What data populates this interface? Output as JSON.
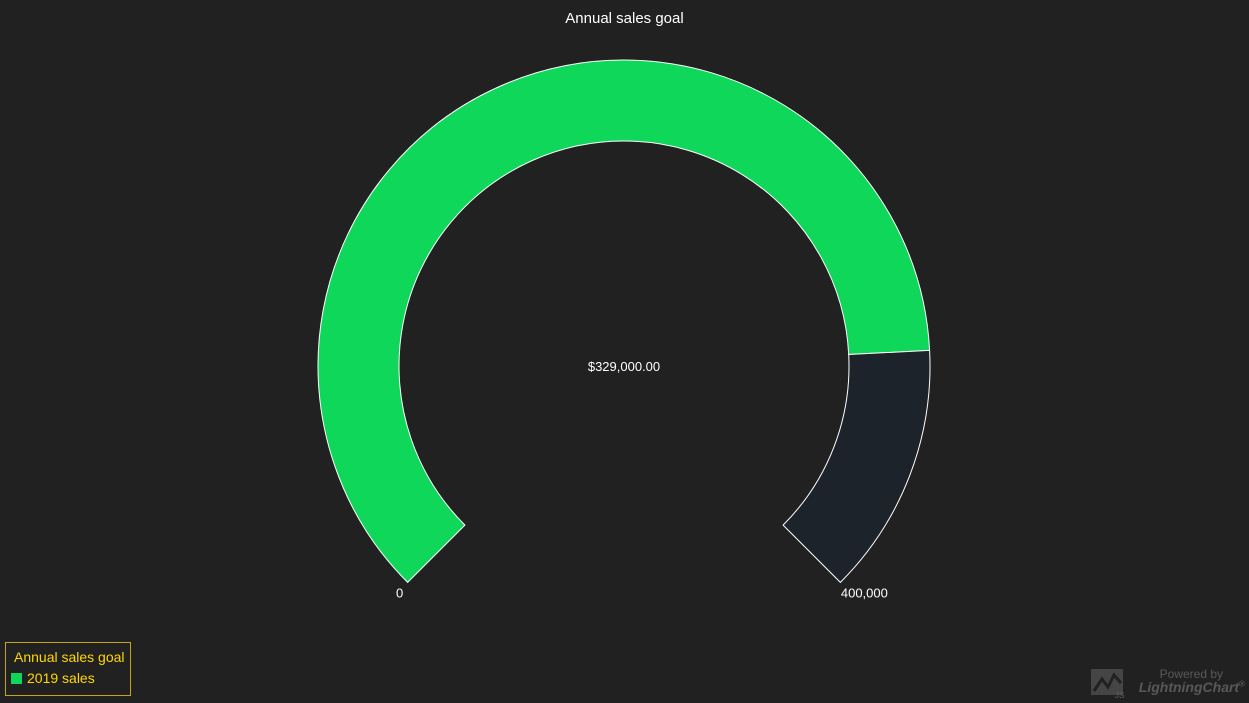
{
  "chart_data": {
    "type": "gauge",
    "title": "Annual sales goal",
    "interval": {
      "start": 0,
      "end": 400000
    },
    "value": 329000,
    "value_label": "$329,000.00",
    "min_label": "0",
    "max_label": "400,000",
    "start_angle_deg": 225,
    "end_angle_deg": -45,
    "legend": {
      "title": "Annual sales goal",
      "entries": [
        {
          "label": "2019 sales",
          "color": "#0fd75a"
        }
      ]
    }
  },
  "colors": {
    "background": "#212121",
    "value_fill": "#0fd75a",
    "remainder_fill": "#1d232a",
    "outline": "#ffffff",
    "legend_text": "#ffd700",
    "legend_border": "#c8a415"
  },
  "watermark": {
    "line1": "Powered by",
    "line2": "LightningChart",
    "mark": "®",
    "logo_text": "JS"
  }
}
